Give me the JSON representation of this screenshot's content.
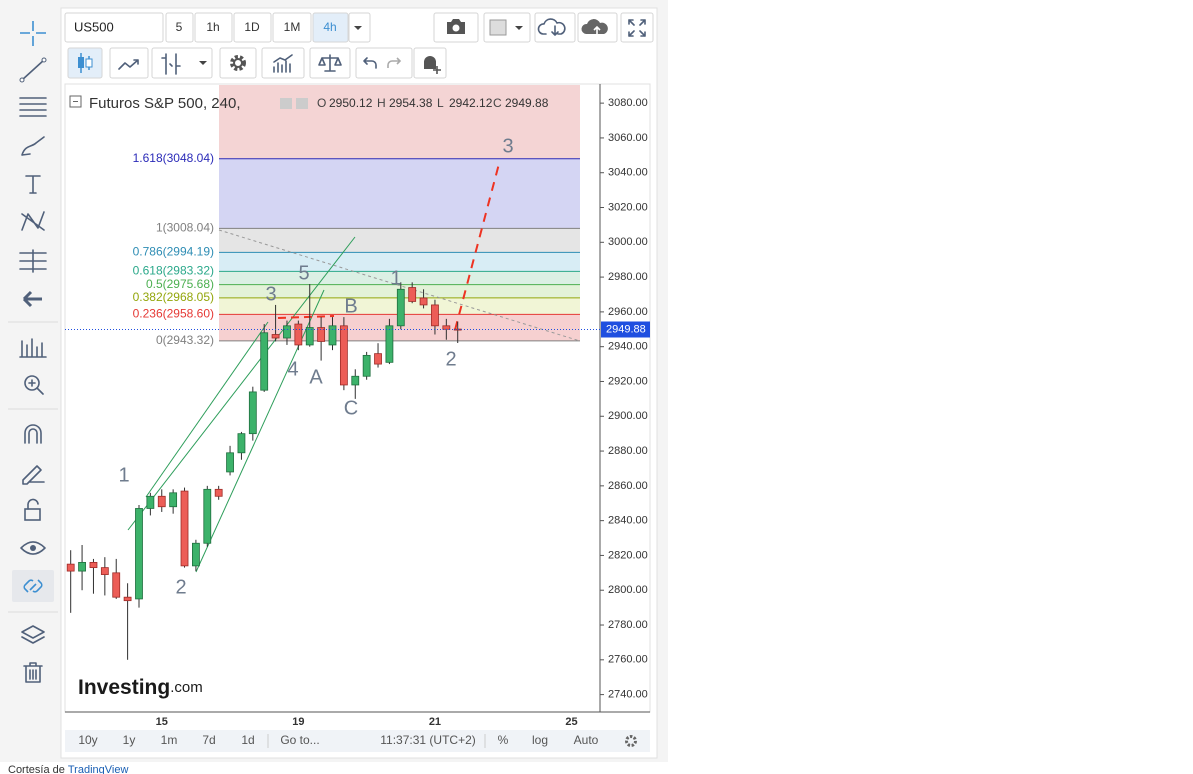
{
  "toolbar": {
    "symbol": "US500",
    "intervals": [
      "5",
      "1h",
      "1D",
      "1M",
      "4h"
    ]
  },
  "chart_data": {
    "type": "candlestick",
    "title": "Futuros S&P 500, 240,",
    "ohlc_legend": [
      {
        "label": "O",
        "value": 2950.12
      },
      {
        "label": "H",
        "value": 2954.38
      },
      {
        "label": "L",
        "value": 2942.12
      },
      {
        "label": "C",
        "value": 2949.88
      }
    ],
    "categories": [
      null,
      null,
      null,
      null,
      null,
      null,
      null,
      null,
      "15",
      null,
      null,
      null,
      null,
      null,
      null,
      null,
      null,
      null,
      null,
      null,
      "19",
      null,
      null,
      null,
      null,
      null,
      null,
      null,
      null,
      null,
      null,
      null,
      "21",
      null,
      null,
      null,
      null,
      null,
      null,
      null,
      null,
      null,
      null,
      null,
      "25",
      null,
      null
    ],
    "open": [
      2815,
      2811,
      2816,
      2813,
      2810,
      2796,
      2795,
      2847,
      2854,
      2848,
      2857,
      2814,
      2827,
      2858,
      2868,
      2879,
      2890,
      2915,
      2947,
      2945,
      2953,
      2941,
      2951,
      2941,
      2952,
      2918,
      2923,
      2936,
      2931,
      2952,
      2974,
      2968,
      2964,
      2952,
      2950.12,
      null,
      null,
      null,
      null,
      null,
      null,
      null,
      null,
      null,
      null,
      null,
      null
    ],
    "high": [
      2823,
      2826,
      2818,
      2819,
      2818,
      2804,
      2849,
      2856,
      2858,
      2858,
      2859,
      2829,
      2860,
      2860,
      2883,
      2891,
      2917,
      2953,
      2964,
      2955,
      2955,
      2976,
      2957,
      2957,
      2957,
      2927,
      2937,
      2942,
      2956,
      2977,
      2977,
      2973,
      2967,
      2956,
      2954.38,
      null,
      null,
      null,
      null,
      null,
      null,
      null,
      null,
      null,
      null,
      null,
      null
    ],
    "low": [
      2787,
      2800,
      2798,
      2797,
      2795,
      2760,
      2790,
      2843,
      2845,
      2844,
      2813,
      2811,
      2825,
      2852,
      2866,
      2875,
      2886,
      2914,
      2943,
      2941,
      2938,
      2940,
      2932,
      2938,
      2915,
      2910,
      2921,
      2928,
      2930,
      2950,
      2965,
      2962,
      2947,
      2944,
      2942.12,
      null,
      null,
      null,
      null,
      null,
      null,
      null,
      null,
      null,
      null,
      null,
      null
    ],
    "close": [
      2811,
      2816,
      2813,
      2809,
      2796,
      2794,
      2847,
      2854,
      2848,
      2856,
      2814,
      2827,
      2858,
      2854,
      2879,
      2890,
      2914,
      2948,
      2945,
      2952,
      2941,
      2951,
      2943,
      2952,
      2918,
      2923,
      2935,
      2930,
      2952,
      2973,
      2966,
      2964,
      2952,
      2950,
      2949.88,
      null,
      null,
      null,
      null,
      null,
      null,
      null,
      null,
      null,
      null,
      null,
      null
    ],
    "up_color": "#3cb26a",
    "down_color": "#ec5d57",
    "ylim": [
      2730,
      3091
    ],
    "yticks": [
      {
        "value": 2740,
        "label": "2740.00"
      },
      {
        "value": 2760,
        "label": "2760.00"
      },
      {
        "value": 2780,
        "label": "2780.00"
      },
      {
        "value": 2800,
        "label": "2800.00"
      },
      {
        "value": 2820,
        "label": "2820.00"
      },
      {
        "value": 2840,
        "label": "2840.00"
      },
      {
        "value": 2860,
        "label": "2860.00"
      },
      {
        "value": 2880,
        "label": "2880.00"
      },
      {
        "value": 2900,
        "label": "2900.00"
      },
      {
        "value": 2920,
        "label": "2920.00"
      },
      {
        "value": 2940,
        "label": "2940.00"
      },
      {
        "value": 2960,
        "label": "2960.00"
      },
      {
        "value": 2980,
        "label": "2980.00"
      },
      {
        "value": 3000,
        "label": "3000.00"
      },
      {
        "value": 3020,
        "label": "3020.00"
      },
      {
        "value": 3040,
        "label": "3040.00"
      },
      {
        "value": 3060,
        "label": "3060.00"
      },
      {
        "value": 3080,
        "label": "3080.00"
      }
    ],
    "last_price": 2949.88,
    "fib_levels": [
      {
        "label": "0(2943.32)",
        "value": 2943.32,
        "color": "#808080",
        "fill": "#f6d0d0"
      },
      {
        "label": "0.236(2958.60)",
        "value": 2958.6,
        "color": "#e53935",
        "fill": "#f1f5d6"
      },
      {
        "label": "0.382(2968.05)",
        "value": 2968.05,
        "color": "#93a60b",
        "fill": "#e3f2d8"
      },
      {
        "label": "0.5(2975.68)",
        "value": 2975.68,
        "color": "#4caf50",
        "fill": "#dbf0e4"
      },
      {
        "label": "0.618(2983.32)",
        "value": 2983.32,
        "color": "#2aa88a",
        "fill": "#d8edf5"
      },
      {
        "label": "0.786(2994.19)",
        "value": 2994.19,
        "color": "#2e8db4",
        "fill": "#e5e5e5"
      },
      {
        "label": "1(3008.04)",
        "value": 3008.04,
        "color": "#808080",
        "fill": "#d4d5f3"
      },
      {
        "label": "1.618(3048.04)",
        "value": 3048.04,
        "color": "#2b2bb8",
        "fill": "#f4d4d4"
      }
    ],
    "annotations": [
      "1",
      "2",
      "3",
      "4",
      "5",
      "A",
      "B",
      "C",
      "1",
      "2",
      "3"
    ],
    "watermark": {
      "brand": "Investing",
      "suffix": ".com"
    }
  },
  "bottom_bar": {
    "ranges": [
      "10y",
      "1y",
      "1m",
      "7d",
      "1d"
    ],
    "goto": "Go to...",
    "time": "11:37:31 (UTC+2)",
    "percent": "%",
    "log": "log",
    "auto": "Auto"
  },
  "footer": {
    "prefix": "Cortesía de",
    "link": "TradingView"
  }
}
